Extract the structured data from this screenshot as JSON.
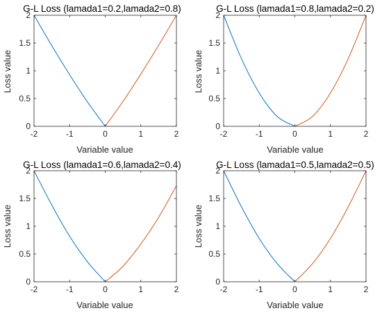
{
  "chart_data": [
    {
      "type": "line",
      "title": "G-L Loss (lamada1=0.2,lamada2=0.8)",
      "xlabel": "Variable value",
      "ylabel": "Loss value",
      "xlim": [
        -2,
        2
      ],
      "ylim": [
        0,
        2
      ],
      "xticks": [
        "-2",
        "-1",
        "0",
        "1",
        "2"
      ],
      "yticks": [
        "0",
        "0.5",
        "1",
        "1.5",
        "2"
      ],
      "grid": false,
      "series": [
        {
          "color": "#0072BD",
          "x": [
            -2,
            -1.5,
            -1,
            -0.5,
            0
          ],
          "y": [
            2.0,
            1.45,
            0.93,
            0.44,
            0.0
          ]
        },
        {
          "color": "#D95319",
          "x": [
            0,
            0.5,
            1,
            1.5,
            2
          ],
          "y": [
            0.0,
            0.45,
            0.94,
            1.46,
            2.0
          ]
        }
      ]
    },
    {
      "type": "line",
      "title": "G-L Loss (lamada1=0.8,lamada2=0.2)",
      "xlabel": "Variable value",
      "ylabel": "Loss value",
      "xlim": [
        -2,
        2
      ],
      "ylim": [
        0,
        2
      ],
      "xticks": [
        "-2",
        "-1",
        "0",
        "1",
        "2"
      ],
      "yticks": [
        "0",
        "0.5",
        "1",
        "1.5",
        "2"
      ],
      "grid": false,
      "series": [
        {
          "color": "#0072BD",
          "x": [
            -2,
            -1.5,
            -1,
            -0.5,
            0
          ],
          "y": [
            2.0,
            1.22,
            0.6,
            0.18,
            0.0
          ]
        },
        {
          "color": "#D95319",
          "x": [
            0,
            0.5,
            1,
            1.5,
            2
          ],
          "y": [
            0.0,
            0.18,
            0.6,
            1.22,
            2.0
          ]
        }
      ]
    },
    {
      "type": "line",
      "title": "G-L Loss (lamada1=0.6,lamada2=0.4)",
      "xlabel": "Variable value",
      "ylabel": "Loss value",
      "xlim": [
        -2,
        2
      ],
      "ylim": [
        0,
        2
      ],
      "xticks": [
        "-2",
        "-1",
        "0",
        "1",
        "2"
      ],
      "yticks": [
        "0",
        "0.5",
        "1",
        "1.5",
        "2"
      ],
      "grid": false,
      "series": [
        {
          "color": "#0072BD",
          "x": [
            -2,
            -1.5,
            -1,
            -0.5,
            0
          ],
          "y": [
            2.0,
            1.38,
            0.82,
            0.36,
            0.0
          ]
        },
        {
          "color": "#D95319",
          "x": [
            0,
            0.5,
            1,
            1.5,
            2
          ],
          "y": [
            0.0,
            0.28,
            0.68,
            1.16,
            1.73
          ]
        }
      ]
    },
    {
      "type": "line",
      "title": "G-L Loss (lamada1=0.5,lamada2=0.5)",
      "xlabel": "Variable value",
      "ylabel": "Loss value",
      "xlim": [
        -2,
        2
      ],
      "ylim": [
        0,
        2
      ],
      "xticks": [
        "-2",
        "-1",
        "0",
        "1",
        "2"
      ],
      "yticks": [
        "0",
        "0.5",
        "1",
        "1.5",
        "2"
      ],
      "grid": false,
      "series": [
        {
          "color": "#0072BD",
          "x": [
            -2,
            -1.5,
            -1,
            -0.5,
            0
          ],
          "y": [
            2.0,
            1.35,
            0.78,
            0.33,
            0.0
          ]
        },
        {
          "color": "#D95319",
          "x": [
            0,
            0.5,
            1,
            1.5,
            2
          ],
          "y": [
            0.0,
            0.33,
            0.78,
            1.35,
            2.0
          ]
        }
      ]
    }
  ]
}
